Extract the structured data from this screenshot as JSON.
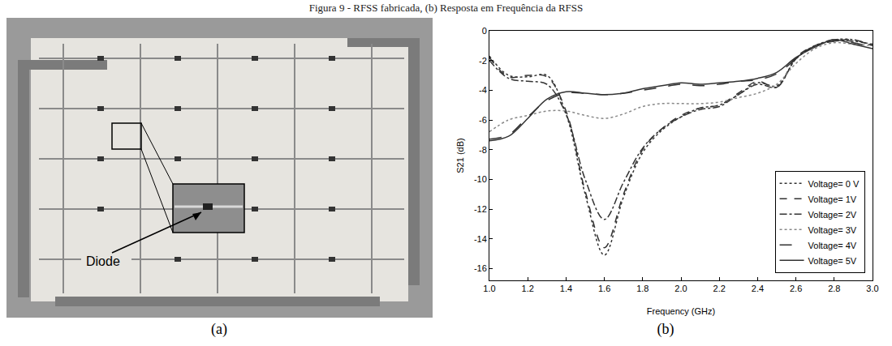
{
  "caption": "Figura 9 - RFSS fabricada, (b) Resposta em Frequência da RFSS",
  "photo": {
    "label": "(a)",
    "annotation": "Diode"
  },
  "chart_data": {
    "type": "line",
    "panel_label": "(b)",
    "x_label": "Frequency (GHz)",
    "y_label": "S21 (dB)",
    "x": [
      1.0,
      1.1,
      1.2,
      1.3,
      1.4,
      1.5,
      1.6,
      1.7,
      1.8,
      1.9,
      2.0,
      2.1,
      2.2,
      2.3,
      2.4,
      2.5,
      2.6,
      2.7,
      2.8,
      2.9,
      3.0
    ],
    "xlim": [
      1.0,
      3.0
    ],
    "xticks": [
      {
        "value": 1.0,
        "label": "1.0"
      },
      {
        "value": 1.2,
        "label": "1.2"
      },
      {
        "value": 1.4,
        "label": "1.4"
      },
      {
        "value": 1.6,
        "label": "1.6"
      },
      {
        "value": 1.8,
        "label": "1.8"
      },
      {
        "value": 2.0,
        "label": "2.0"
      },
      {
        "value": 2.2,
        "label": "2.2"
      },
      {
        "value": 2.4,
        "label": "2.4"
      },
      {
        "value": 2.6,
        "label": "2.6"
      },
      {
        "value": 2.8,
        "label": "2.8"
      },
      {
        "value": 3.0,
        "label": "3.0"
      }
    ],
    "ylim": [
      -16.8,
      0
    ],
    "yticks": [
      -16,
      -14,
      -12,
      -10,
      -8,
      -6,
      -4,
      -2,
      0
    ],
    "grid": false,
    "legend": "bottom right",
    "series": [
      {
        "name": "Voltage= 0 V",
        "color": "#333333",
        "line_style": "dot",
        "values": [
          -1.7,
          -3.0,
          -3.1,
          -3.0,
          -5.6,
          -11.0,
          -15.1,
          -11.2,
          -8.2,
          -6.7,
          -5.8,
          -5.2,
          -5.0,
          -4.3,
          -3.5,
          -3.7,
          -1.9,
          -1.0,
          -0.6,
          -0.6,
          -1.0
        ]
      },
      {
        "name": "Voltage= 1V",
        "color": "#333333",
        "line_style": "dash",
        "values": [
          -1.8,
          -3.1,
          -3.0,
          -3.1,
          -5.4,
          -10.8,
          -14.6,
          -11.0,
          -8.0,
          -6.6,
          -5.7,
          -5.2,
          -5.0,
          -4.2,
          -3.4,
          -3.8,
          -1.8,
          -1.0,
          -0.7,
          -0.6,
          -1.0
        ]
      },
      {
        "name": "Voltage= 2V",
        "color": "#333333",
        "line_style": "dashdot",
        "values": [
          -2.0,
          -3.2,
          -3.4,
          -3.6,
          -5.6,
          -10.0,
          -12.7,
          -10.2,
          -7.9,
          -6.6,
          -5.8,
          -5.3,
          -5.1,
          -4.3,
          -3.6,
          -3.8,
          -1.9,
          -1.0,
          -0.7,
          -0.7,
          -0.9
        ]
      },
      {
        "name": "Voltage= 3V",
        "color": "#888888",
        "line_style": "dot",
        "values": [
          -6.8,
          -6.0,
          -5.7,
          -5.4,
          -5.4,
          -5.7,
          -5.9,
          -5.6,
          -5.1,
          -4.9,
          -4.9,
          -4.9,
          -4.8,
          -4.5,
          -4.2,
          -3.6,
          -2.2,
          -1.2,
          -0.8,
          -0.9,
          -1.0
        ]
      },
      {
        "name": "Voltage= 4V",
        "color": "#333333",
        "line_style": "longdash",
        "values": [
          -7.3,
          -7.0,
          -5.8,
          -4.7,
          -4.2,
          -4.2,
          -4.3,
          -4.2,
          -4.0,
          -3.8,
          -3.6,
          -3.7,
          -3.6,
          -3.4,
          -3.3,
          -2.9,
          -1.9,
          -1.0,
          -0.6,
          -0.8,
          -1.1
        ]
      },
      {
        "name": "Voltage= 5V",
        "color": "#333333",
        "line_style": "solid",
        "values": [
          -7.4,
          -7.1,
          -5.9,
          -4.6,
          -4.1,
          -4.2,
          -4.3,
          -4.2,
          -3.9,
          -3.7,
          -3.5,
          -3.6,
          -3.5,
          -3.4,
          -3.2,
          -2.8,
          -1.8,
          -1.1,
          -0.6,
          -0.9,
          -1.2
        ]
      }
    ]
  }
}
